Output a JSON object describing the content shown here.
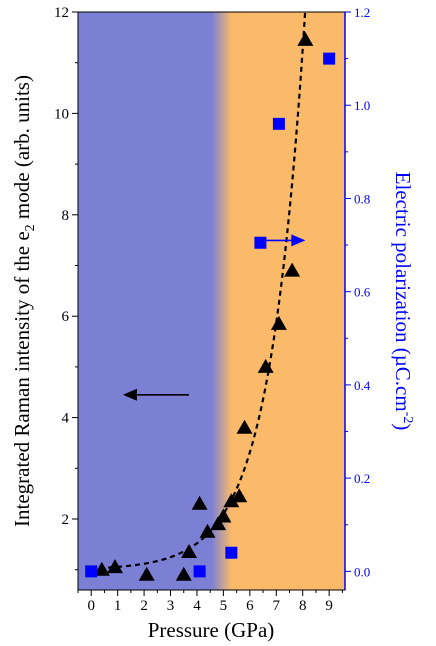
{
  "chart_data": {
    "type": "scatter",
    "xlabel": "Pressure (GPa)",
    "ylabel": "Integrated Raman intensity of the e",
    "ylabel_sub": "2",
    "ylabel_tail": " mode (arb. units)",
    "y2label": "Electric polarization (µC.cm",
    "y2label_sup": "-2",
    "y2label_tail": ")",
    "xlim": [
      -0.5,
      9.6
    ],
    "ylim": [
      0.6,
      12
    ],
    "y2lim": [
      -0.04,
      1.2
    ],
    "x_ticks": [
      0,
      1,
      2,
      3,
      4,
      5,
      6,
      7,
      8,
      9
    ],
    "y_ticks": [
      2,
      4,
      6,
      8,
      10,
      12
    ],
    "y2_ticks": [
      0.0,
      0.2,
      0.4,
      0.6,
      0.8,
      1.0,
      1.2
    ],
    "regions": [
      {
        "x0": -0.5,
        "x1": 4.6,
        "color": "#7b80d4"
      },
      {
        "x0": 5.3,
        "x1": 9.6,
        "color": "#fbb96a"
      }
    ],
    "series": [
      {
        "marker": "triangle",
        "axis": "left",
        "color": "#000000",
        "x": [
          0.4,
          0.9,
          2.1,
          3.5,
          3.7,
          4.1,
          4.4,
          4.8,
          5.0,
          5.3,
          5.6,
          5.8,
          6.6,
          7.1,
          7.6,
          8.1
        ],
        "y": [
          1.0,
          1.05,
          0.9,
          0.9,
          1.35,
          2.3,
          1.75,
          1.9,
          2.05,
          2.35,
          2.45,
          3.8,
          5.0,
          5.85,
          6.9,
          11.45
        ]
      },
      {
        "marker": "square",
        "axis": "right",
        "color": "#0000ff",
        "x": [
          0.0,
          4.1,
          5.3,
          6.4,
          7.1,
          9.0
        ],
        "y": [
          0.0,
          0.0,
          0.04,
          0.705,
          0.96,
          1.1
        ]
      }
    ],
    "fit_curve": {
      "style": "dashed",
      "color": "#000000",
      "x_range": [
        0.3,
        8.4
      ]
    },
    "arrows": [
      {
        "direction": "left",
        "axis": "left",
        "color": "#000000"
      },
      {
        "direction": "right",
        "axis": "right",
        "color": "#0000ff"
      }
    ]
  }
}
